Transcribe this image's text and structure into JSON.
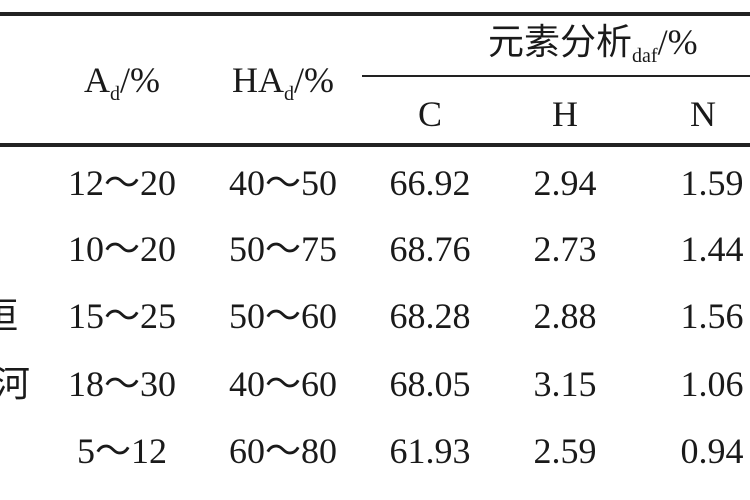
{
  "header": {
    "ad": "A",
    "ad_sub": "d",
    "ad_unit": "/%",
    "had": "HA",
    "had_sub": "d",
    "had_unit": "/%",
    "elem": "元素分析",
    "elem_sub": "daf",
    "elem_unit": "/%",
    "columns": [
      "C",
      "H",
      "N"
    ]
  },
  "row_labels": [
    "垣",
    "河"
  ],
  "rows": [
    [
      "12～20",
      "40～50",
      "66.92",
      "2.94",
      "1.59"
    ],
    [
      "10～20",
      "50～75",
      "68.76",
      "2.73",
      "1.44"
    ],
    [
      "15～25",
      "50～60",
      "68.28",
      "2.88",
      "1.56"
    ],
    [
      "18～30",
      "40～60",
      "68.05",
      "3.15",
      "1.06"
    ],
    [
      "5～12",
      "60～80",
      "61.93",
      "2.59",
      "0.94"
    ]
  ]
}
